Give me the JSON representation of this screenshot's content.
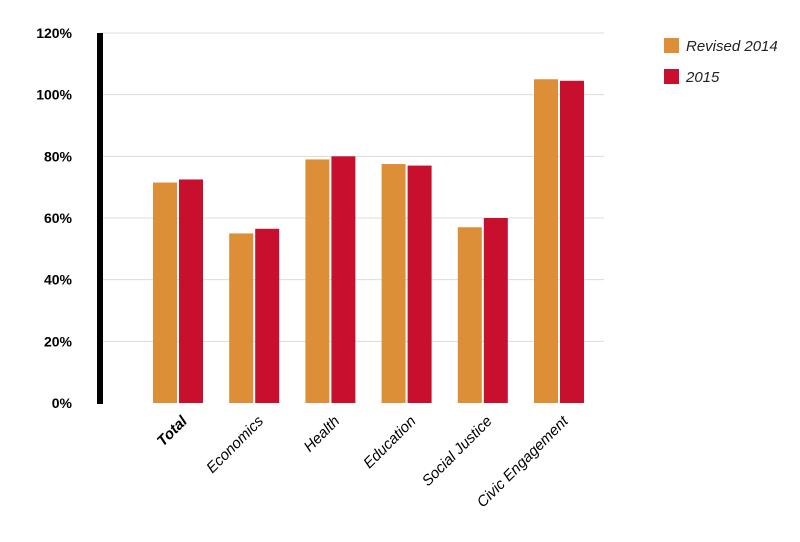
{
  "chart_data": {
    "type": "bar",
    "title": "",
    "xlabel": "",
    "ylabel": "",
    "categories": [
      "Total",
      "Economics",
      "Health",
      "Education",
      "Social Justice",
      "Civic Engagement"
    ],
    "bold_categories": [
      "Total"
    ],
    "series": [
      {
        "name": "Revised 2014",
        "color": "#dc8f37",
        "values": [
          71.5,
          55,
          79,
          77.5,
          57,
          105
        ]
      },
      {
        "name": "2015",
        "color": "#c8102e",
        "values": [
          72.5,
          56.5,
          80,
          77,
          60,
          104.5
        ]
      }
    ],
    "ylim": [
      0,
      120
    ],
    "yticks": [
      0,
      20,
      40,
      60,
      80,
      100,
      120
    ],
    "ytick_labels": [
      "0%",
      "20%",
      "40%",
      "60%",
      "80%",
      "100%",
      "120%"
    ],
    "grid": true,
    "legend_position": "top-right"
  }
}
